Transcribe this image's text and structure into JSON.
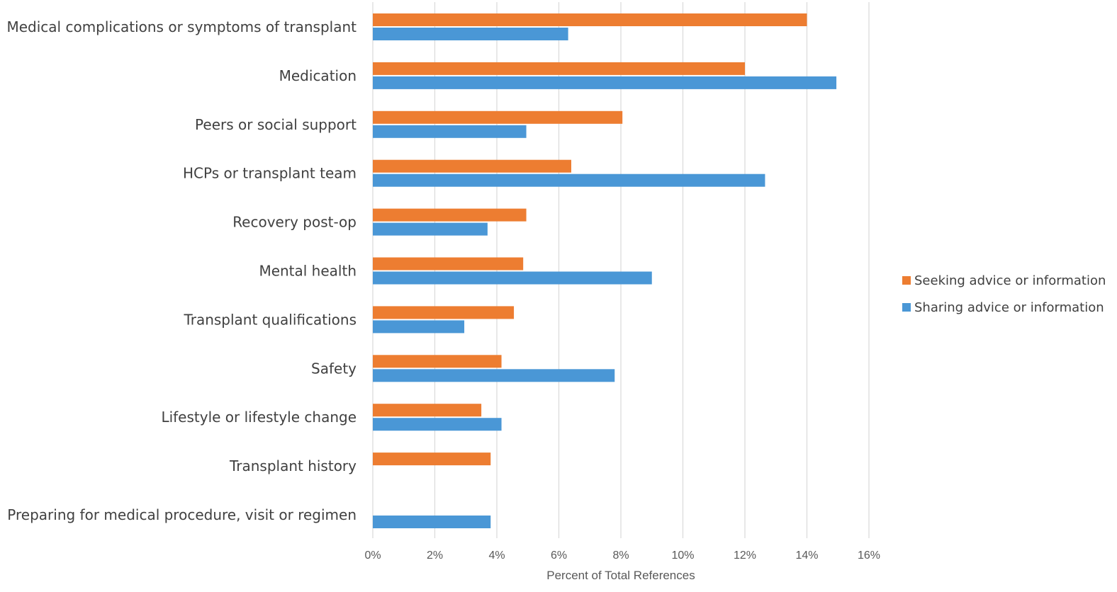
{
  "chart_data": {
    "type": "bar",
    "orientation": "horizontal",
    "categories": [
      "Medical complications or symptoms of transplant",
      "Medication",
      "Peers or social support",
      "HCPs or transplant team",
      "Recovery post-op",
      "Mental health",
      "Transplant qualifications",
      "Safety",
      "Lifestyle or lifestyle change",
      "Transplant history",
      "Preparing for medical procedure, visit or regimen"
    ],
    "series": [
      {
        "name": "Seeking advice or information",
        "color": "#ED7D31",
        "values": [
          14.0,
          12.0,
          8.05,
          6.4,
          4.95,
          4.85,
          4.55,
          4.15,
          3.5,
          3.8,
          null
        ]
      },
      {
        "name": "Sharing advice or information",
        "color": "#4A97D6",
        "values": [
          6.3,
          14.95,
          4.95,
          12.65,
          3.7,
          9.0,
          2.95,
          7.8,
          4.15,
          null,
          3.8
        ]
      }
    ],
    "xlabel": "Percent of Total References",
    "ylabel": "",
    "xlim": [
      0,
      16
    ],
    "xticks": [
      "0%",
      "2%",
      "4%",
      "6%",
      "8%",
      "10%",
      "12%",
      "14%",
      "16%"
    ],
    "grid": "vertical",
    "legend_position": "right"
  }
}
